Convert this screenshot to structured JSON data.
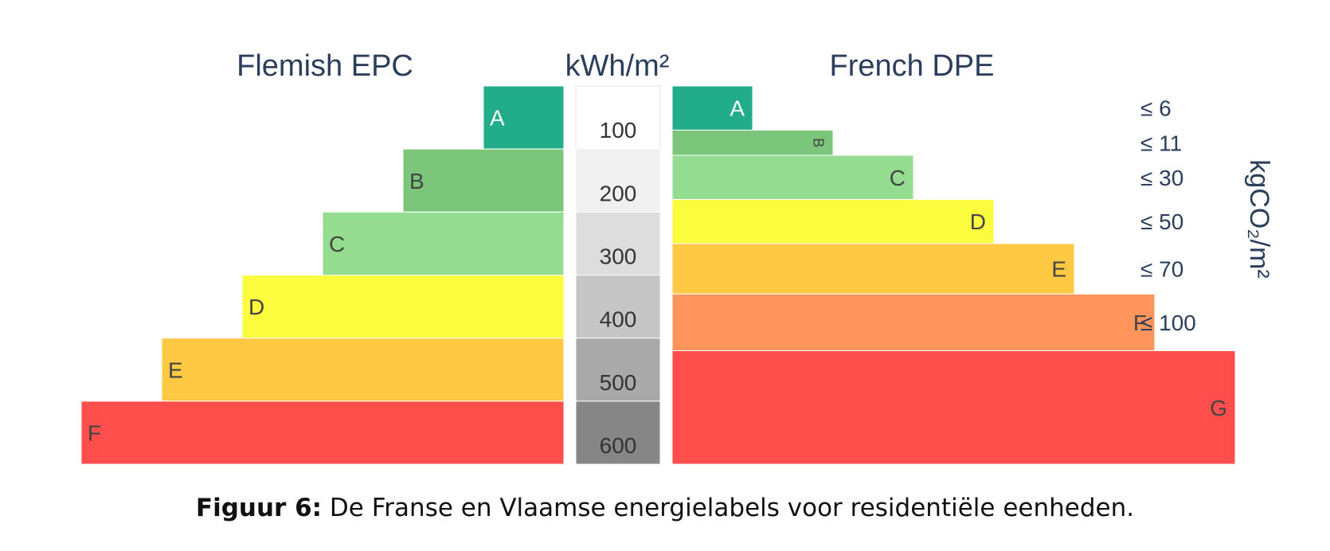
{
  "chart_data": {
    "type": "bar",
    "titles": {
      "left": "Flemish EPC",
      "center": "kWh/m²",
      "right": "French DPE",
      "co2_axis": "kgCO₂/m²"
    },
    "kwh_scale": [
      "100",
      "200",
      "300",
      "400",
      "500",
      "600"
    ],
    "flemish_epc": [
      {
        "label": "A",
        "upper_kwh": 100,
        "color": "#22ad8a"
      },
      {
        "label": "B",
        "upper_kwh": 200,
        "color": "#7bc67a"
      },
      {
        "label": "C",
        "upper_kwh": 300,
        "color": "#94dc8f"
      },
      {
        "label": "D",
        "upper_kwh": 400,
        "color": "#fdfd40"
      },
      {
        "label": "E",
        "upper_kwh": 500,
        "color": "#ffc944"
      },
      {
        "label": "F",
        "upper_kwh": 600,
        "color": "#ff4e4b"
      }
    ],
    "french_dpe": [
      {
        "label": "A",
        "upper_kwh": 70,
        "co2": "≤ 6",
        "color": "#22ad8a"
      },
      {
        "label": "B",
        "upper_kwh": 110,
        "co2": "≤ 11",
        "color": "#7bc67a"
      },
      {
        "label": "C",
        "upper_kwh": 180,
        "co2": "≤ 30",
        "color": "#94dc8f"
      },
      {
        "label": "D",
        "upper_kwh": 250,
        "co2": "≤ 50",
        "color": "#fdfd40"
      },
      {
        "label": "E",
        "upper_kwh": 330,
        "co2": "≤ 70",
        "color": "#ffc944"
      },
      {
        "label": "F",
        "upper_kwh": 420,
        "co2": "≤ 100",
        "color": "#ff955d"
      },
      {
        "label": "G",
        "upper_kwh": 600,
        "co2": "",
        "color": "#ff4e4b"
      }
    ],
    "scale_colors": [
      "#ffffff",
      "#f0f0f0",
      "#dddddd",
      "#c6c6c6",
      "#a9a9a9",
      "#868686"
    ]
  },
  "caption": {
    "bold": "Figuur 6:",
    "text": " De Franse en Vlaamse energielabels voor residentiële eenheden."
  }
}
